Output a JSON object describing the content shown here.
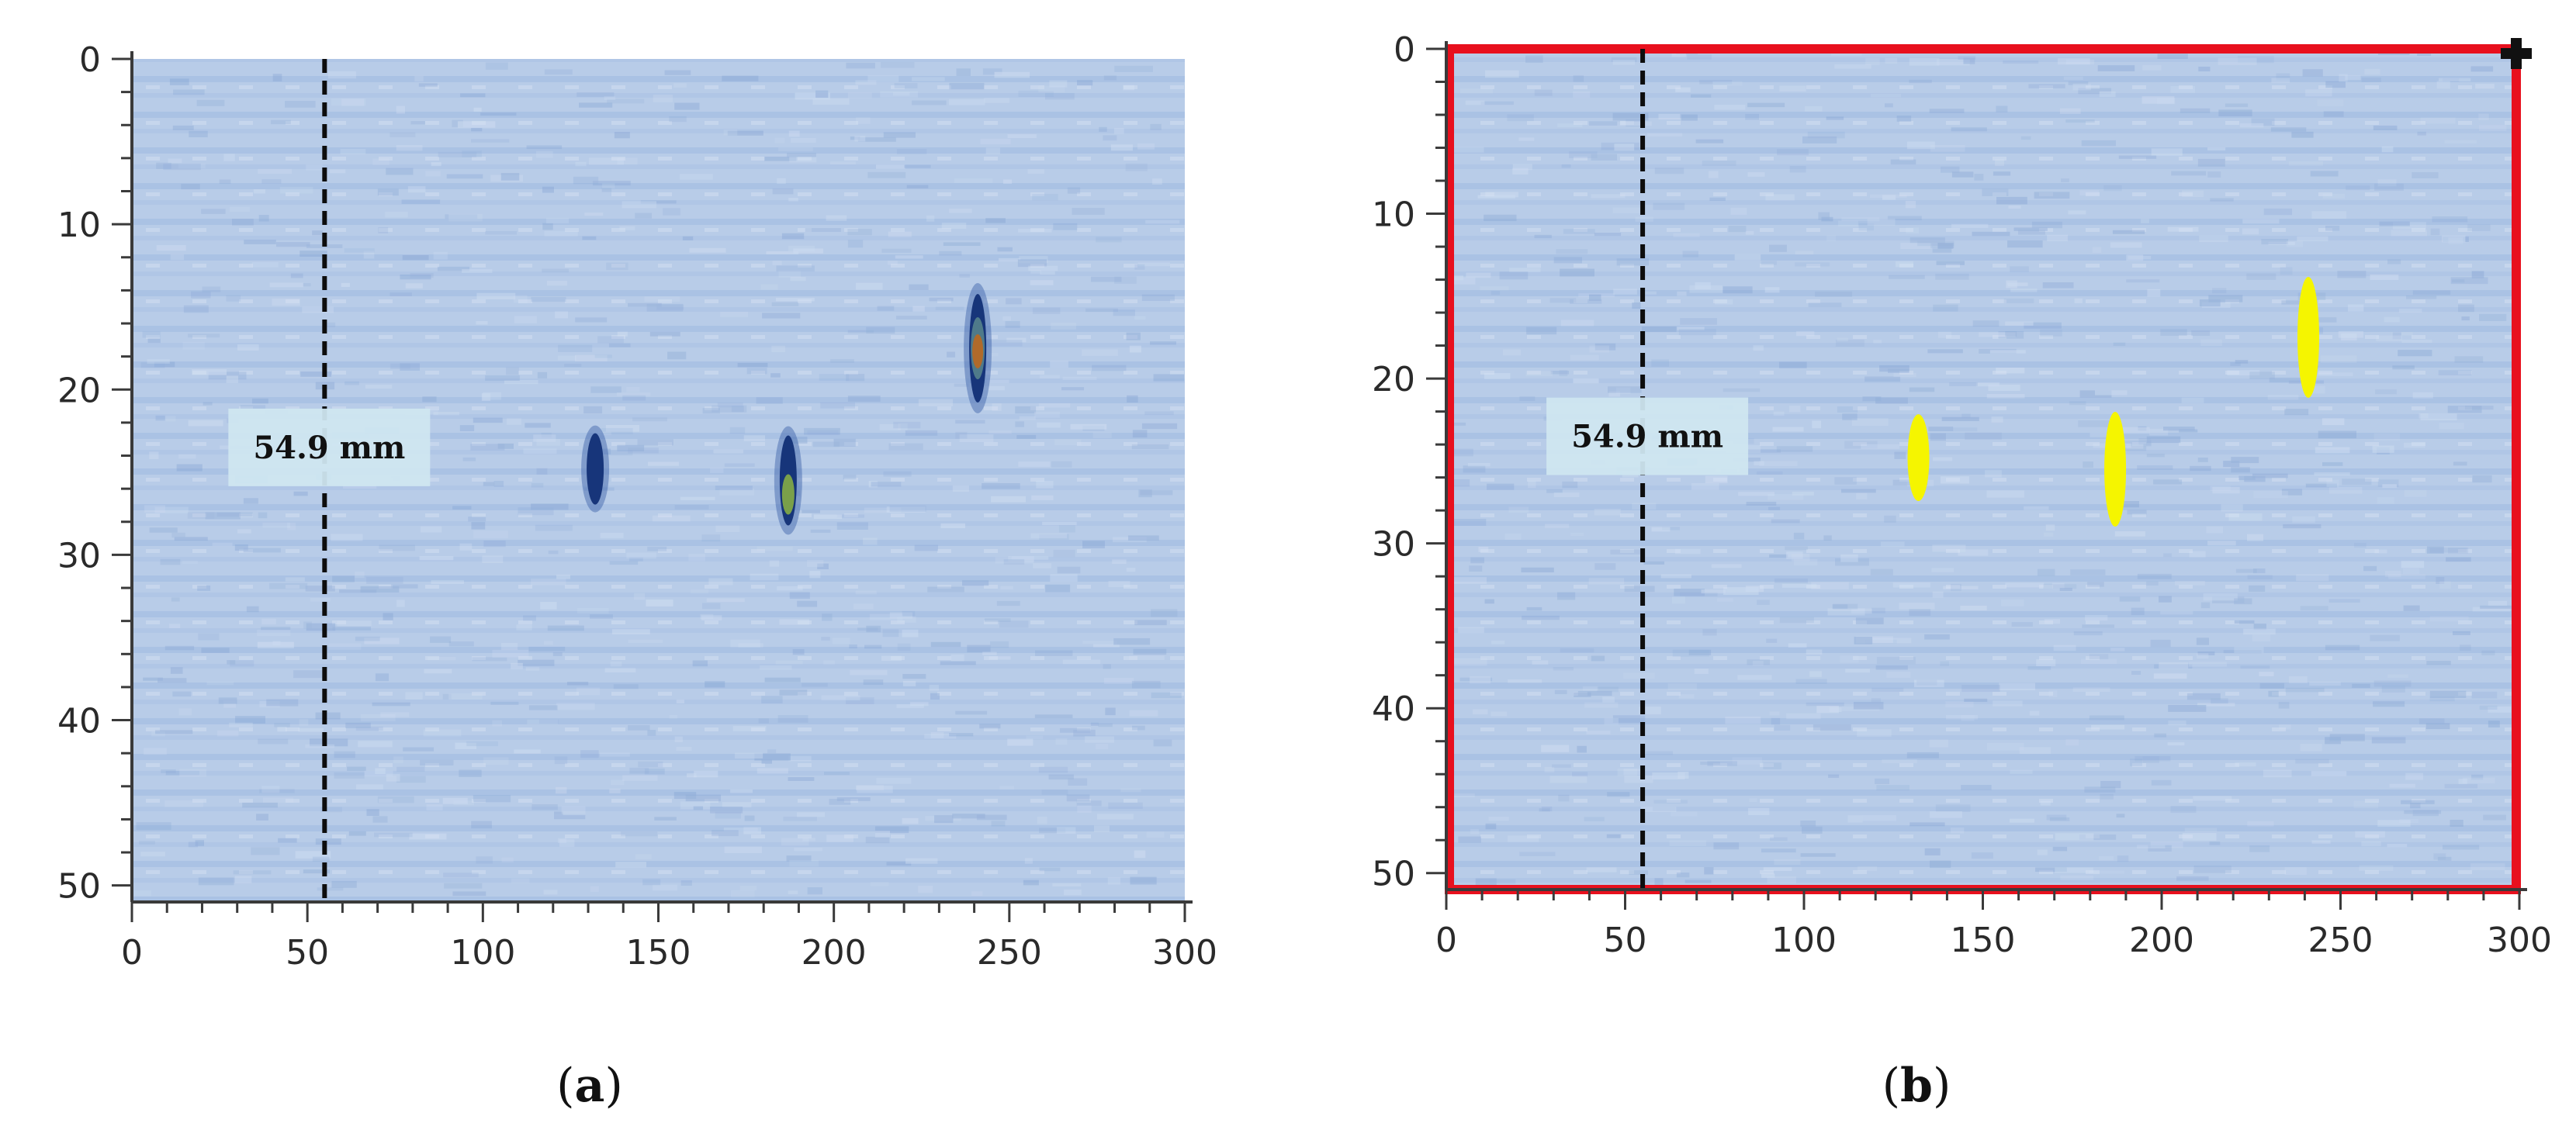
{
  "chart_data": [
    {
      "type": "heatmap",
      "caption": "a",
      "xlim": [
        0,
        300
      ],
      "ylim": [
        0,
        51
      ],
      "y_inverted": true,
      "x_ticks": [
        0,
        50,
        100,
        150,
        200,
        250,
        300
      ],
      "y_ticks": [
        0,
        10,
        20,
        30,
        40,
        50
      ],
      "background_color": "#b8cce8",
      "marker_line": {
        "x": 54.9,
        "label": "54.9 mm"
      },
      "defects": [
        {
          "x": 132,
          "y": 24.8,
          "color": "#1c3f8c"
        },
        {
          "x": 187,
          "y": 25.5,
          "color": "#2a5a6a"
        },
        {
          "x": 241,
          "y": 17.5,
          "color": "#b06a2a"
        }
      ],
      "highlight_box": null
    },
    {
      "type": "heatmap",
      "caption": "b",
      "xlim": [
        0,
        300
      ],
      "ylim": [
        0,
        51
      ],
      "y_inverted": true,
      "x_ticks": [
        0,
        50,
        100,
        150,
        200,
        250,
        300
      ],
      "y_ticks": [
        0,
        10,
        20,
        30,
        40,
        50
      ],
      "background_color": "#b8cce8",
      "marker_line": {
        "x": 54.9,
        "label": "54.9 mm"
      },
      "defects": [
        {
          "x": 132,
          "y": 24.8,
          "color": "#f5f500"
        },
        {
          "x": 187,
          "y": 25.5,
          "color": "#f5f500"
        },
        {
          "x": 241,
          "y": 17.5,
          "color": "#f5f500"
        }
      ],
      "highlight_box": {
        "x0": 0,
        "x1": 300,
        "y0": 0,
        "y1": 51,
        "color": "#e8101e"
      }
    }
  ]
}
